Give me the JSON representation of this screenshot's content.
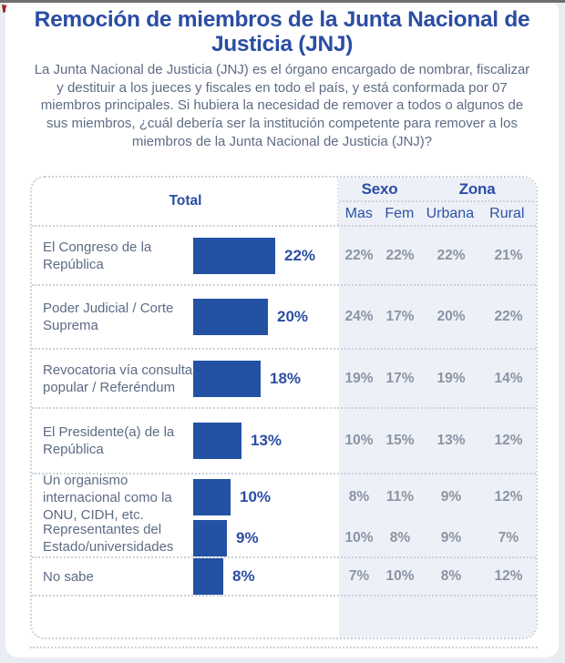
{
  "page": {
    "title_lines": [
      "Remoción de miembros de la Junta Nacional de",
      "Justicia (JNJ)"
    ],
    "question": "La Junta Nacional de Justicia (JNJ) es el órgano encargado de nombrar, fiscalizar y destituir a los jueces y fiscales en todo el país, y está conformada por 07 miembros principales. Si hubiera la necesidad de remover a todos o algunos de sus miembros, ¿cuál debería ser la institución competente para remover a los miembros de la Junta Nacional de Justicia (JNJ)?"
  },
  "colors": {
    "accent_blue": "#2b4da3",
    "bar_blue": "#2352a4",
    "muted_gray": "#8b94a5",
    "label_gray_blue": "#5d6b84",
    "shade_bg": "#edf1f7",
    "corner_red": "#a02120"
  },
  "table": {
    "total_label": "Total",
    "group_sexo": "Sexo",
    "group_zona": "Zona",
    "col_mas": "Mas",
    "col_fem": "Fem",
    "col_urbana": "Urbana",
    "col_rural": "Rural",
    "rows": [
      {
        "label": "El Congreso de la República",
        "total": "22%",
        "mas": "22%",
        "fem": "22%",
        "urbana": "22%",
        "rural": "21%"
      },
      {
        "label": "Poder Judicial / Corte Suprema",
        "total": "20%",
        "mas": "24%",
        "fem": "17%",
        "urbana": "20%",
        "rural": "22%"
      },
      {
        "label": "Revocatoria vía consulta popular / Referéndum",
        "total": "18%",
        "mas": "19%",
        "fem": "17%",
        "urbana": "19%",
        "rural": "14%"
      },
      {
        "label": "El Presidente(a) de la República",
        "total": "13%",
        "mas": "10%",
        "fem": "15%",
        "urbana": "13%",
        "rural": "12%"
      },
      {
        "label": "Un organismo internacional como la ONU, CIDH, etc.",
        "total": "10%",
        "mas": "8%",
        "fem": "11%",
        "urbana": "9%",
        "rural": "12%"
      },
      {
        "label": "Representantes del Estado/universidades",
        "total": "9%",
        "mas": "10%",
        "fem": "8%",
        "urbana": "9%",
        "rural": "7%"
      },
      {
        "label": "No sabe",
        "total": "8%",
        "mas": "7%",
        "fem": "10%",
        "urbana": "8%",
        "rural": "12%"
      }
    ]
  },
  "chart_data": {
    "type": "bar",
    "title": "Remoción de miembros de la Junta Nacional de Justicia (JNJ)",
    "question": "La Junta Nacional de Justicia (JNJ) es el órgano encargado de nombrar, fiscalizar y destituir a los jueces y fiscales en todo el país, y está conformada por 07 miembros principales. Si hubiera la necesidad de remover a todos o algunos de sus miembros, ¿cuál debería ser la institución competente para remover a los miembros de la Junta Nacional de Justicia (JNJ)?",
    "unit": "%",
    "categories": [
      "El Congreso de la República",
      "Poder Judicial / Corte Suprema",
      "Revocatoria vía consulta popular / Referéndum",
      "El Presidente(a) de la República",
      "Un organismo internacional como la ONU, CIDH, etc.",
      "Representantes del Estado/universidades",
      "No sabe"
    ],
    "series": [
      {
        "name": "Total",
        "values": [
          22,
          20,
          18,
          13,
          10,
          9,
          8
        ]
      },
      {
        "name": "Mas",
        "values": [
          22,
          24,
          19,
          10,
          8,
          10,
          7
        ]
      },
      {
        "name": "Fem",
        "values": [
          22,
          17,
          17,
          15,
          11,
          8,
          10
        ]
      },
      {
        "name": "Urbana",
        "values": [
          22,
          20,
          19,
          13,
          9,
          9,
          8
        ]
      },
      {
        "name": "Rural",
        "values": [
          21,
          22,
          14,
          12,
          12,
          7,
          12
        ]
      }
    ],
    "column_groups": [
      {
        "label": "Sexo",
        "columns": [
          "Mas",
          "Fem"
        ]
      },
      {
        "label": "Zona",
        "columns": [
          "Urbana",
          "Rural"
        ]
      }
    ],
    "layout": {
      "orientation": "horizontal-bars",
      "value_labels": true,
      "xlim": [
        0,
        25
      ]
    }
  }
}
